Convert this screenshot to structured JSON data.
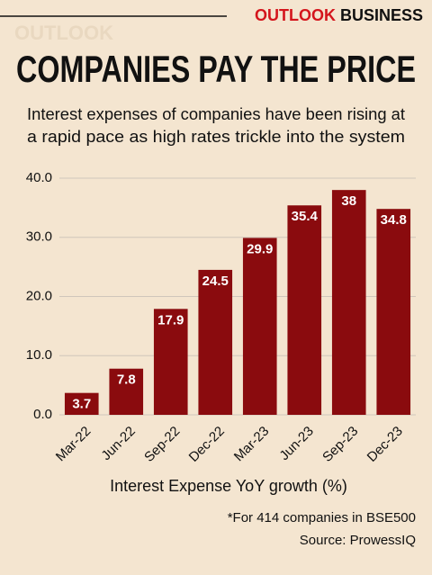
{
  "brand": {
    "primary": "OUTLOOK",
    "secondary": "BUSINESS",
    "watermark": "OUTLOOK"
  },
  "chart_data": {
    "type": "bar",
    "title": "COMPANIES PAY THE PRICE",
    "subtitle": [
      "Interest expenses of companies have been rising at",
      "a rapid pace as high rates trickle into the system"
    ],
    "categories": [
      "Mar-22",
      "Jun-22",
      "Sep-22",
      "Dec-22",
      "Mar-23",
      "Jun-23",
      "Sep-23",
      "Dec-23"
    ],
    "values": [
      3.7,
      7.8,
      17.9,
      24.5,
      29.9,
      35.4,
      38,
      34.8
    ],
    "color": "#8a0b0e",
    "ylim": [
      0,
      40
    ],
    "yticks": [
      {
        "value": 0,
        "label": "0.0"
      },
      {
        "value": 10,
        "label": "10.0"
      },
      {
        "value": 20,
        "label": "20.0"
      },
      {
        "value": 30,
        "label": "30.0"
      },
      {
        "value": 40,
        "label": "40.0"
      }
    ],
    "grid": true,
    "x_label": "Interest Expense YoY growth (%)",
    "notes": [
      "*For 414 companies in BSE500",
      "Source: ProwessIQ"
    ]
  }
}
